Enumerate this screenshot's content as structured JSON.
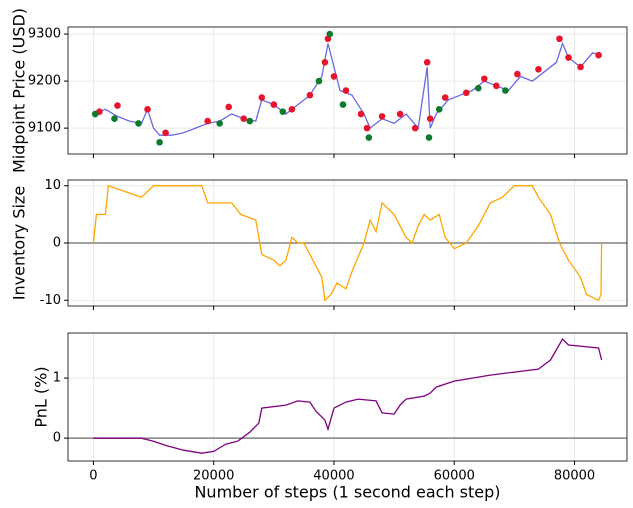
{
  "chart_data": [
    {
      "type": "line",
      "ylabel": "Midpoint Price (USD)",
      "xlim": [
        -4225,
        88725
      ],
      "xticks": [
        0,
        20000,
        40000,
        60000,
        80000
      ],
      "ylim": [
        9045,
        9315
      ],
      "yticks": [
        9100,
        9200,
        9300
      ],
      "grid": true,
      "series": [
        {
          "type": "line",
          "color": "#4444dd",
          "x": [
            0,
            2000,
            4000,
            6000,
            8000,
            9000,
            10000,
            11000,
            13000,
            15000,
            17000,
            19000,
            21000,
            23000,
            25000,
            27000,
            28000,
            30000,
            32000,
            34000,
            36000,
            38000,
            39000,
            40000,
            41000,
            43000,
            45000,
            46000,
            48000,
            50000,
            52000,
            54000,
            55500,
            56000,
            57000,
            59000,
            61000,
            63000,
            65000,
            67000,
            69000,
            71000,
            73000,
            75000,
            77000,
            78000,
            79000,
            81000,
            83000,
            84500
          ],
          "values": [
            9130,
            9140,
            9125,
            9115,
            9110,
            9140,
            9100,
            9085,
            9085,
            9090,
            9100,
            9110,
            9115,
            9130,
            9120,
            9115,
            9160,
            9150,
            9130,
            9150,
            9170,
            9210,
            9280,
            9230,
            9180,
            9170,
            9130,
            9100,
            9120,
            9110,
            9130,
            9100,
            9230,
            9100,
            9130,
            9160,
            9170,
            9180,
            9200,
            9190,
            9180,
            9210,
            9200,
            9220,
            9240,
            9280,
            9250,
            9230,
            9260,
            9255
          ]
        },
        {
          "type": "scatter",
          "color": "#e8142c",
          "x": [
            1000,
            4000,
            9000,
            12000,
            19000,
            22500,
            25000,
            28000,
            30000,
            33000,
            36000,
            38500,
            39000,
            40000,
            42000,
            44500,
            45500,
            48000,
            51000,
            53500,
            55500,
            56000,
            58500,
            62000,
            65000,
            67000,
            70500,
            74000,
            77500,
            79000,
            81000,
            84000
          ],
          "values": [
            9135,
            9148,
            9140,
            9090,
            9115,
            9145,
            9120,
            9165,
            9150,
            9140,
            9170,
            9240,
            9290,
            9210,
            9180,
            9130,
            9100,
            9125,
            9130,
            9100,
            9240,
            9120,
            9165,
            9175,
            9205,
            9190,
            9215,
            9225,
            9290,
            9250,
            9230,
            9255
          ]
        },
        {
          "type": "scatter",
          "color": "#0e7a2e",
          "x": [
            300,
            3500,
            7500,
            11000,
            21000,
            26000,
            31500,
            37500,
            39300,
            41500,
            45800,
            55800,
            57500,
            64000,
            68500
          ],
          "values": [
            9130,
            9120,
            9110,
            9070,
            9110,
            9115,
            9135,
            9200,
            9300,
            9150,
            9080,
            9080,
            9140,
            9185,
            9180
          ]
        }
      ]
    },
    {
      "type": "line",
      "ylabel": "Inventory Size",
      "xlim": [
        -4225,
        88725
      ],
      "xticks": [
        0,
        20000,
        40000,
        60000,
        80000
      ],
      "ylim": [
        -11,
        11
      ],
      "yticks": [
        -10,
        0,
        10
      ],
      "grid": true,
      "hline": 0,
      "series": [
        {
          "type": "line",
          "color": "#ffa500",
          "x": [
            0,
            500,
            2000,
            2500,
            8000,
            10000,
            18000,
            19000,
            23000,
            24500,
            27000,
            28000,
            30000,
            31000,
            32000,
            33000,
            34000,
            35000,
            36500,
            38000,
            38500,
            39500,
            40500,
            42000,
            43000,
            45000,
            46000,
            47000,
            48000,
            50000,
            52000,
            53000,
            54000,
            55000,
            56000,
            57500,
            58500,
            60000,
            62000,
            64000,
            65000,
            66000,
            68000,
            70000,
            73000,
            74000,
            76000,
            77500,
            79000,
            81000,
            82000,
            84000,
            84400,
            84500
          ],
          "values": [
            0,
            5,
            5,
            10,
            8,
            10,
            10,
            7,
            7,
            5,
            4,
            -2,
            -3,
            -4,
            -3,
            1,
            0,
            0,
            -3,
            -6,
            -10,
            -9,
            -7,
            -8,
            -5,
            0,
            4,
            2,
            7,
            5,
            1,
            0,
            3,
            5,
            4,
            5,
            1,
            -1,
            0,
            3,
            5,
            7,
            8,
            10,
            10,
            8,
            5,
            0,
            -3,
            -6,
            -9,
            -10,
            -9,
            0
          ]
        }
      ]
    },
    {
      "type": "line",
      "ylabel": "PnL (%)",
      "xlabel": "Number of steps (1 second each step)",
      "xlim": [
        -4225,
        88725
      ],
      "xticks": [
        0,
        20000,
        40000,
        60000,
        80000
      ],
      "ylim": [
        -0.38,
        1.75
      ],
      "yticks": [
        0,
        1
      ],
      "grid": true,
      "hline": 0,
      "series": [
        {
          "type": "line",
          "color": "#800080",
          "x": [
            0,
            8000,
            10000,
            12000,
            15000,
            18000,
            20000,
            22000,
            24000,
            26000,
            27500,
            28000,
            32000,
            34000,
            36000,
            37000,
            38500,
            39000,
            40000,
            42000,
            44000,
            47000,
            48000,
            50000,
            51000,
            52000,
            55000,
            56000,
            57000,
            60000,
            63000,
            66000,
            70000,
            74000,
            76000,
            78000,
            79000,
            84000,
            84500
          ],
          "values": [
            0,
            0,
            -0.05,
            -0.12,
            -0.2,
            -0.25,
            -0.22,
            -0.1,
            -0.05,
            0.1,
            0.25,
            0.5,
            0.55,
            0.62,
            0.6,
            0.45,
            0.3,
            0.15,
            0.5,
            0.6,
            0.65,
            0.62,
            0.42,
            0.4,
            0.55,
            0.65,
            0.7,
            0.75,
            0.85,
            0.95,
            1.0,
            1.05,
            1.1,
            1.15,
            1.3,
            1.65,
            1.55,
            1.5,
            1.3
          ]
        }
      ]
    }
  ]
}
